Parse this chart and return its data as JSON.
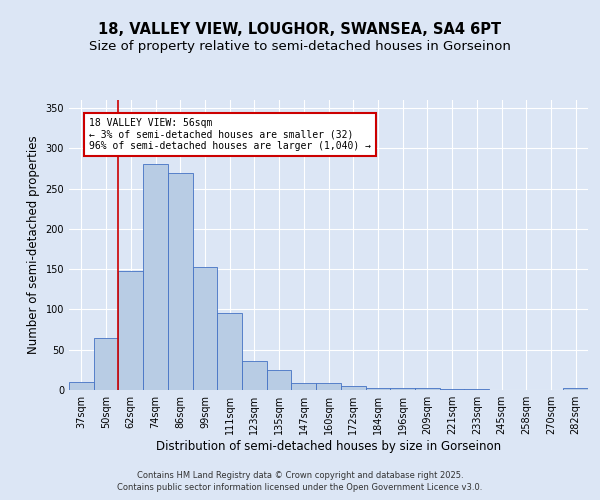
{
  "title_line1": "18, VALLEY VIEW, LOUGHOR, SWANSEA, SA4 6PT",
  "title_line2": "Size of property relative to semi-detached houses in Gorseinon",
  "xlabel": "Distribution of semi-detached houses by size in Gorseinon",
  "ylabel": "Number of semi-detached properties",
  "categories": [
    "37sqm",
    "50sqm",
    "62sqm",
    "74sqm",
    "86sqm",
    "99sqm",
    "111sqm",
    "123sqm",
    "135sqm",
    "147sqm",
    "160sqm",
    "172sqm",
    "184sqm",
    "196sqm",
    "209sqm",
    "221sqm",
    "233sqm",
    "245sqm",
    "258sqm",
    "270sqm",
    "282sqm"
  ],
  "values": [
    10,
    65,
    148,
    280,
    270,
    153,
    95,
    36,
    25,
    9,
    9,
    5,
    3,
    2,
    2,
    1,
    1,
    0,
    0,
    0,
    2
  ],
  "bar_color": "#b8cce4",
  "bar_edge_color": "#4472c4",
  "annotation_text": "18 VALLEY VIEW: 56sqm\n← 3% of semi-detached houses are smaller (32)\n96% of semi-detached houses are larger (1,040) →",
  "annotation_box_color": "#ffffff",
  "annotation_box_edge_color": "#cc0000",
  "vline_color": "#cc0000",
  "vline_x": 1.5,
  "ylim": [
    0,
    360
  ],
  "yticks": [
    0,
    50,
    100,
    150,
    200,
    250,
    300,
    350
  ],
  "background_color": "#dce6f5",
  "plot_background": "#dce6f5",
  "footer_line1": "Contains HM Land Registry data © Crown copyright and database right 2025.",
  "footer_line2": "Contains public sector information licensed under the Open Government Licence v3.0.",
  "title_fontsize": 10.5,
  "subtitle_fontsize": 9.5,
  "tick_fontsize": 7,
  "label_fontsize": 8.5,
  "footer_fontsize": 6
}
